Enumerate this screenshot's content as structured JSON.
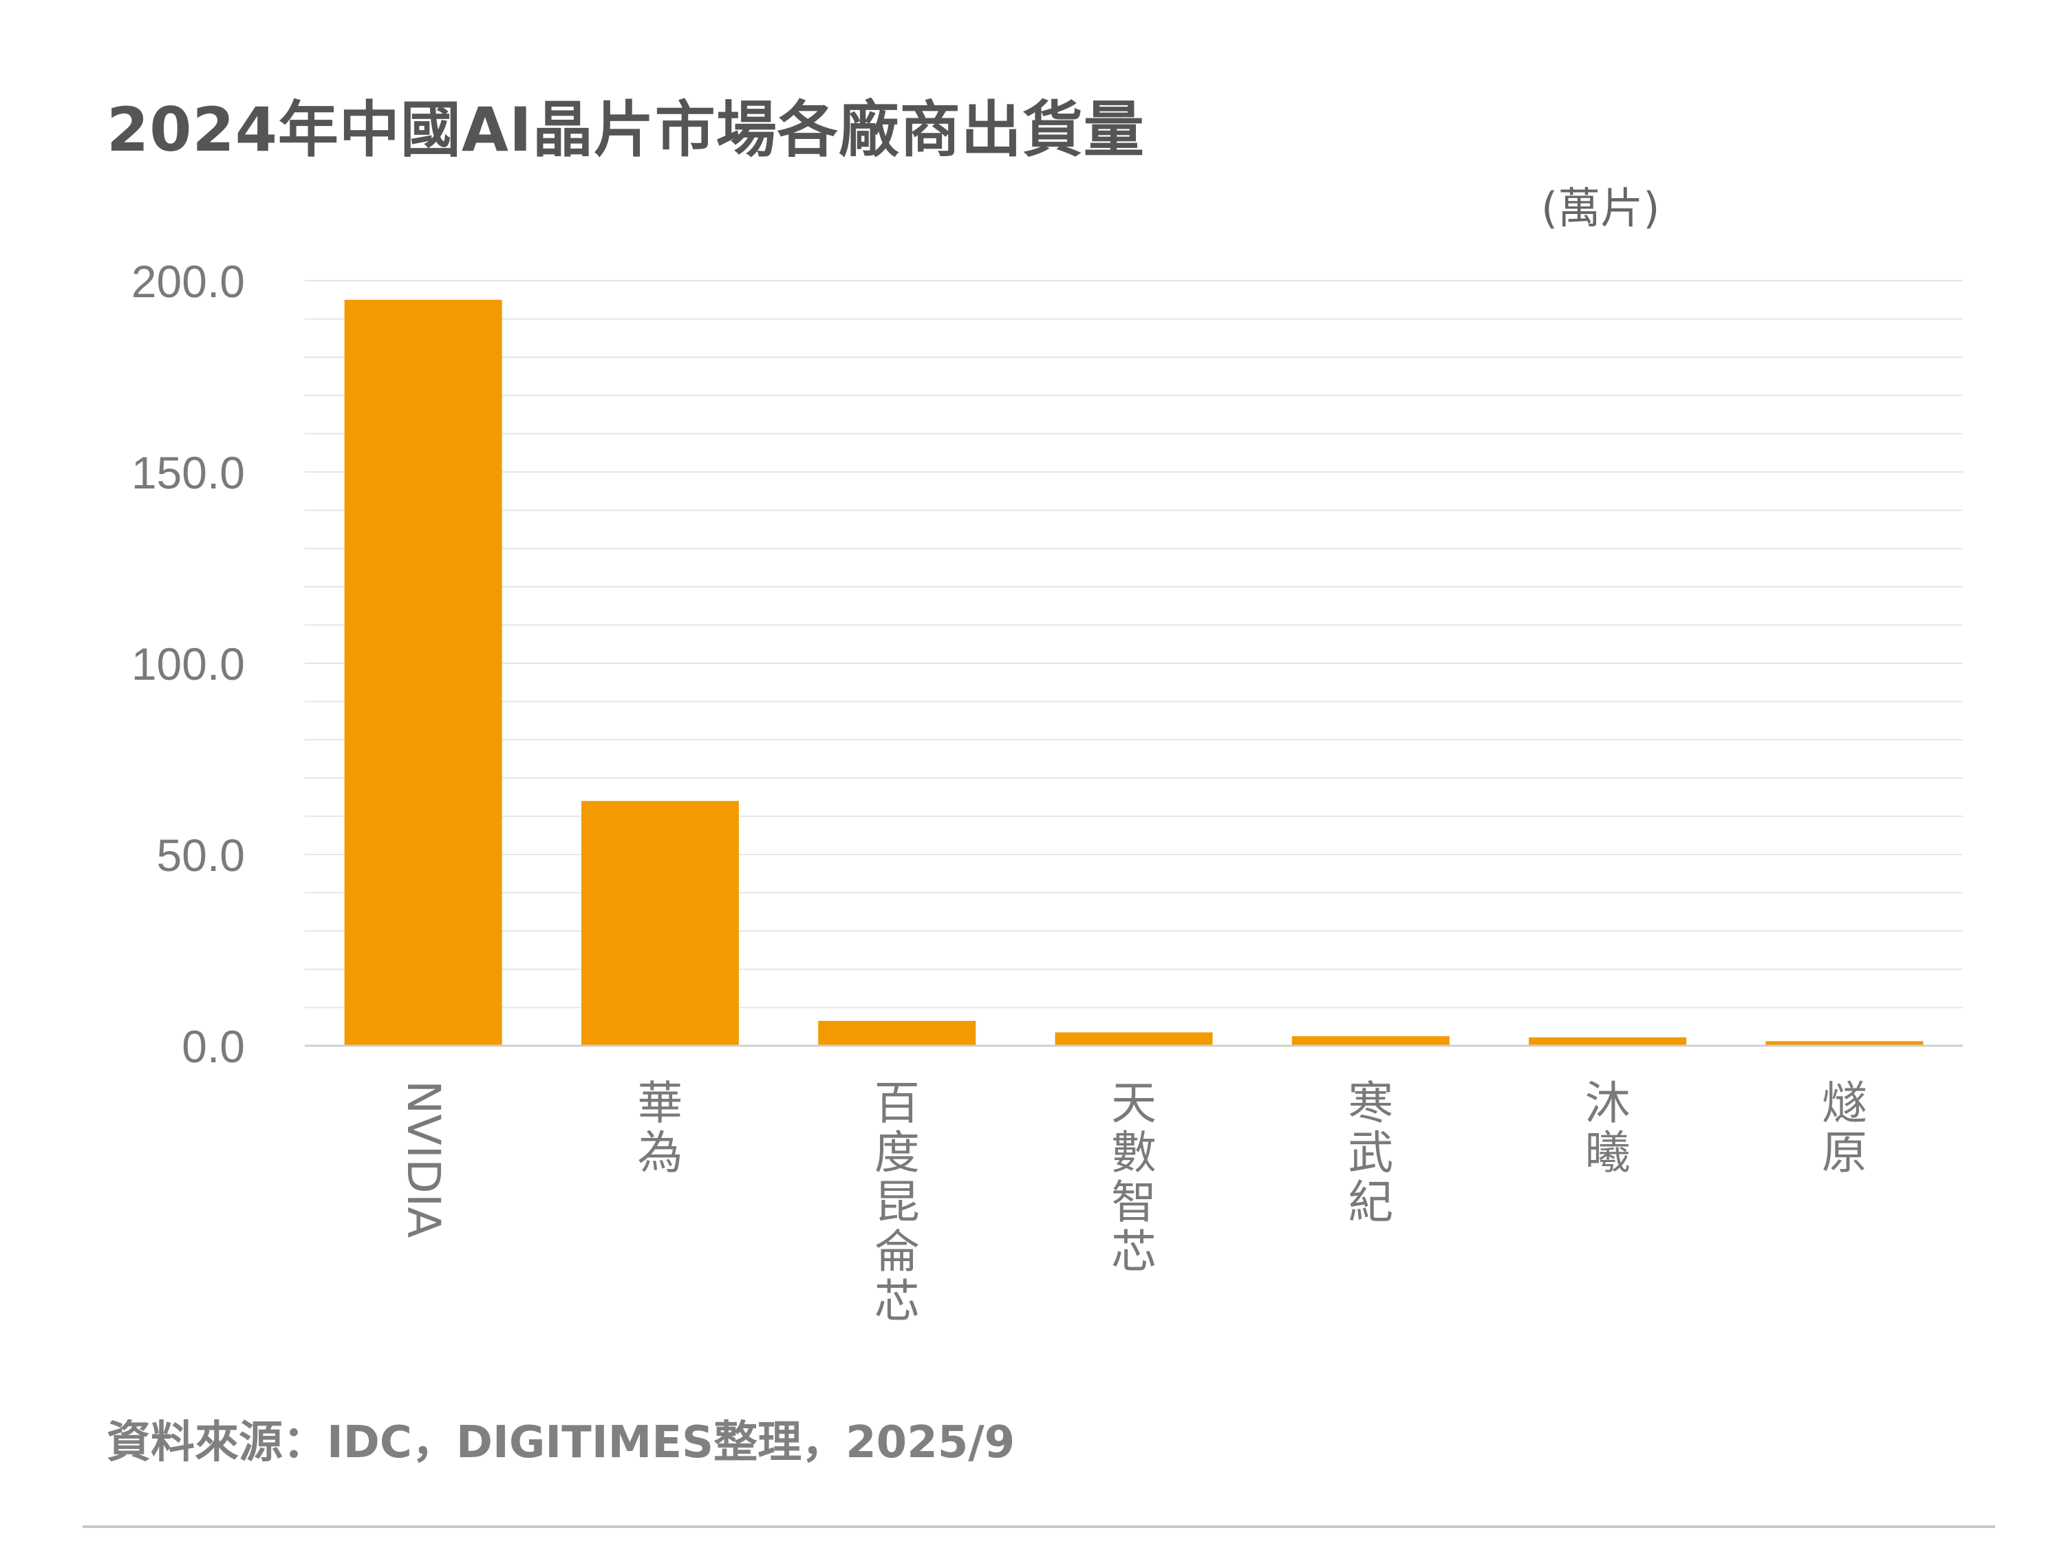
{
  "title": "2024年中國AI晶片市場各廠商出貨量",
  "unit_label": "(萬片)",
  "source": "資料來源：IDC，DIGITIMES整理，2025/9",
  "colors": {
    "bar": "#F29A00",
    "text": "#7a7a7a",
    "grid": "#e6e6e6",
    "axis": "#cfcfcf"
  },
  "chart_data": {
    "type": "bar",
    "categories": [
      "NVIDIA",
      "華為",
      "百度昆侖芯",
      "天數智芯",
      "寒武紀",
      "沐曦",
      "燧原"
    ],
    "values": [
      195,
      64,
      6.5,
      3.5,
      2.5,
      2.2,
      1.2
    ],
    "ylim": [
      0,
      200
    ],
    "yticks": [
      "200.0",
      "150.0",
      "100.0",
      "50.0",
      "0.0"
    ],
    "grid": true,
    "xlabel": "",
    "ylabel": "(萬片)"
  }
}
